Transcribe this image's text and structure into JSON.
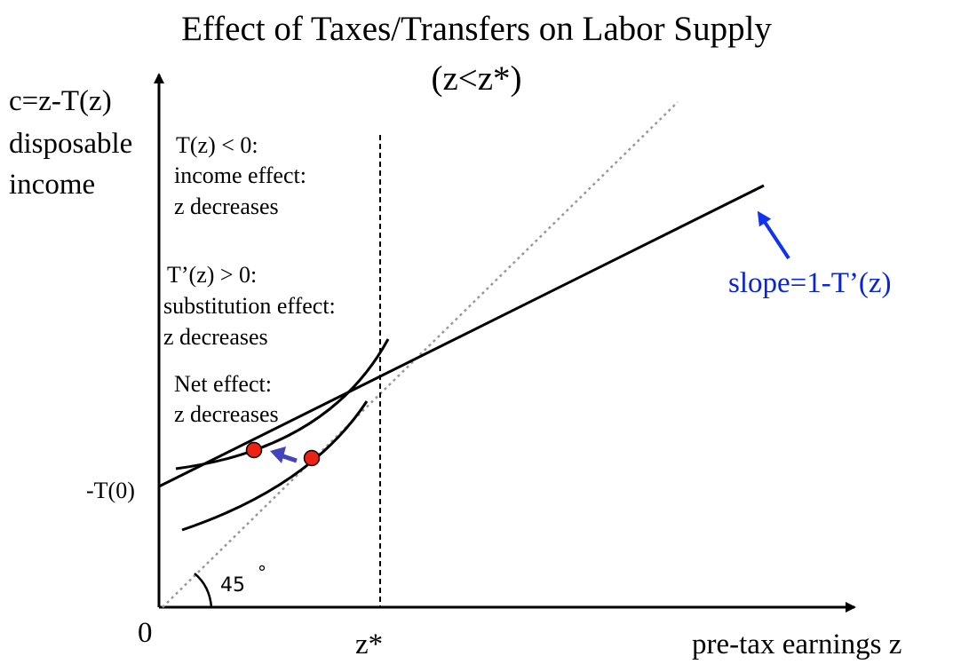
{
  "title": {
    "line1": "Effect of Taxes/Transfers on Labor Supply",
    "line2": "(z<z*)"
  },
  "axes": {
    "y_label_line1": "c=z-T(z)",
    "y_label_line2": "disposable",
    "y_label_line3": "income",
    "x_label": "pre-tax earnings z",
    "origin": "0",
    "intercept": "-T(0)",
    "z_star": "z*"
  },
  "angle_label": "45",
  "angle_degree": "°",
  "annotations": {
    "income_effect": [
      "T(z) < 0:",
      "income effect:",
      "z decreases"
    ],
    "substitution_effect": [
      "T’(z) > 0:",
      "substitution effect:",
      "z decreases"
    ],
    "net_effect": [
      "Net effect:",
      "z decreases"
    ],
    "slope": "slope=1-T’(z)"
  },
  "colors": {
    "curve": "#000000",
    "dot": "#ee2211",
    "slope_arrow": "#1133ee",
    "move_arrow": "#4444bb",
    "dotted_line": "#999999"
  }
}
